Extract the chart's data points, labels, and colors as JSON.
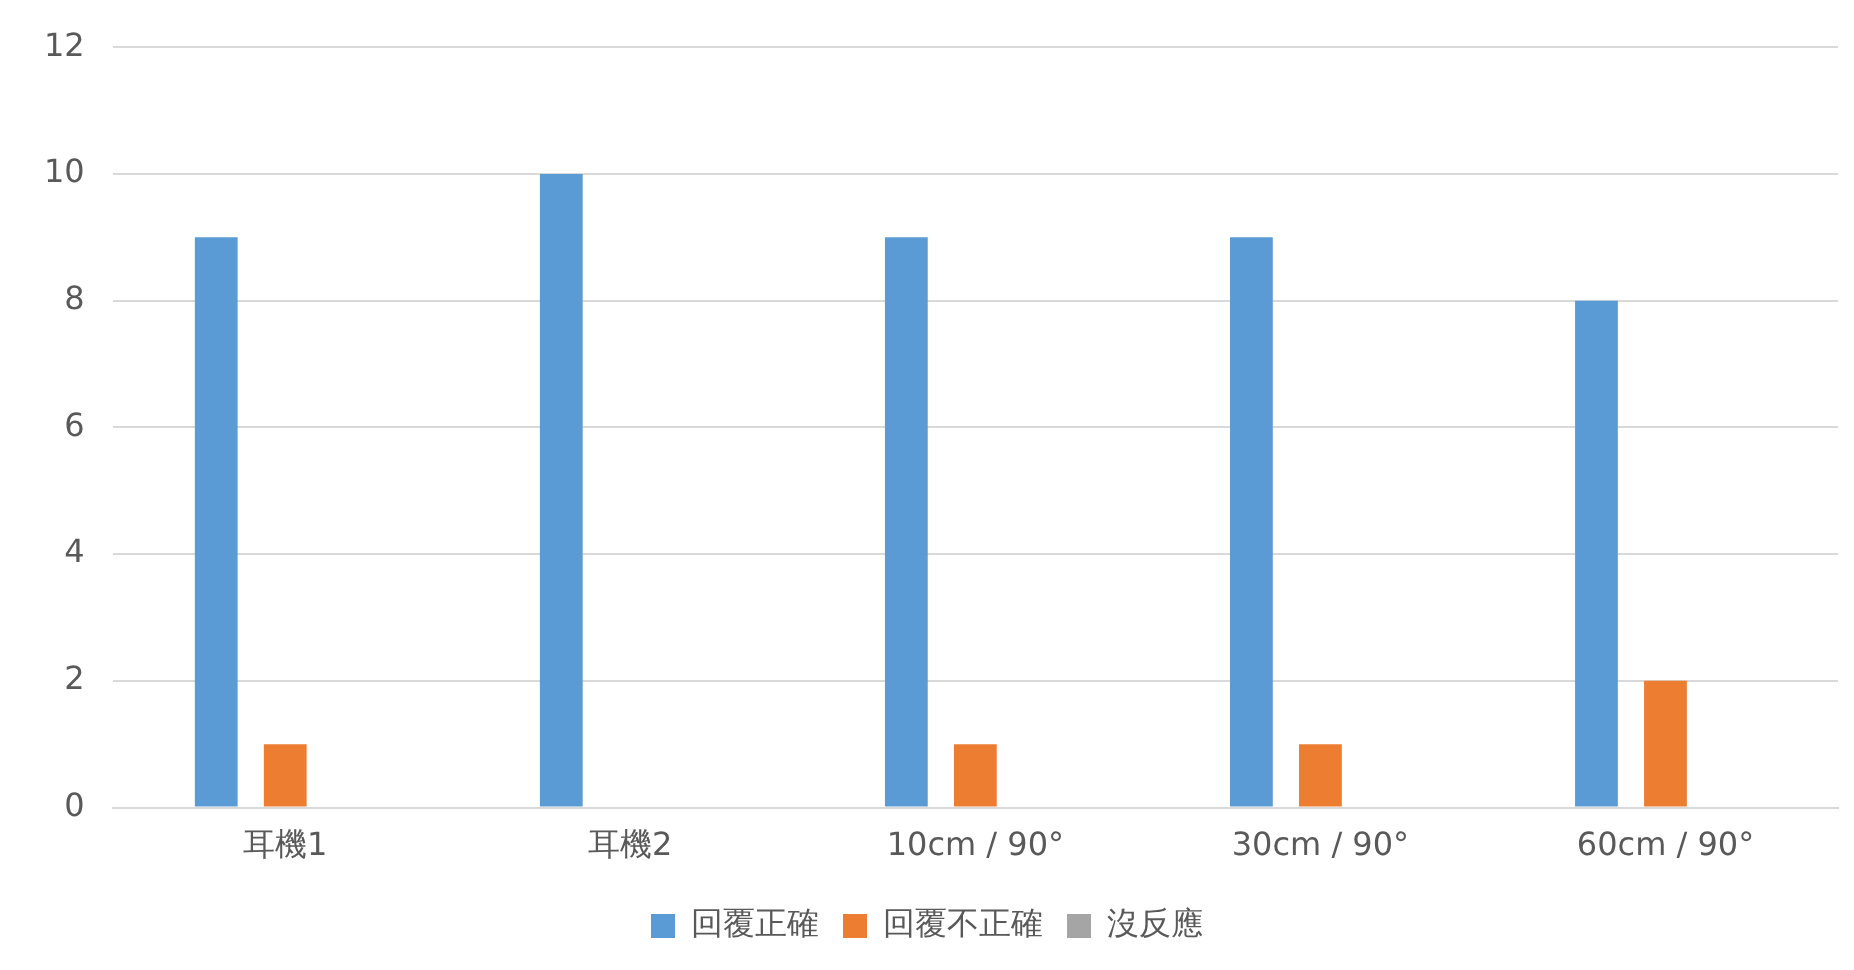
{
  "chart_data": {
    "type": "bar",
    "categories": [
      "耳機1",
      "耳機2",
      "10cm / 90°",
      "30cm / 90°",
      "60cm / 90°"
    ],
    "series": [
      {
        "name": "回覆正確",
        "color": "#5b9bd5",
        "values": [
          9,
          10,
          9,
          9,
          8
        ]
      },
      {
        "name": "回覆不正確",
        "color": "#ed7d31",
        "values": [
          1,
          0,
          1,
          1,
          2
        ]
      },
      {
        "name": "沒反應",
        "color": "#a5a5a5",
        "values": [
          0,
          0,
          0,
          0,
          0
        ]
      }
    ],
    "ylim": [
      0,
      12
    ],
    "yticks": [
      0,
      2,
      4,
      6,
      8,
      10,
      12
    ],
    "grid": "y",
    "legend": "bottom"
  }
}
